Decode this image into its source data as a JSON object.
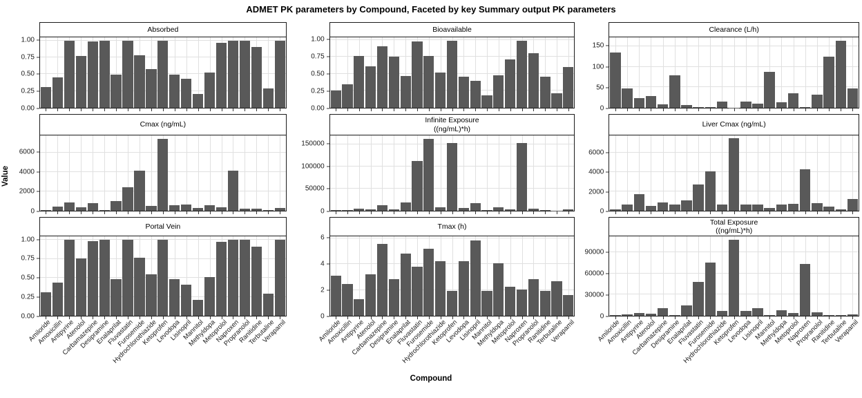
{
  "title": "ADMET PK parameters by Compound, Faceted by key Summary output PK parameters",
  "chart_data": {
    "type": "bar",
    "title": "ADMET PK parameters by Compound, Faceted by key Summary output PK parameters",
    "xlabel": "Compound",
    "ylabel": "Value",
    "legend": "none",
    "grid": "on",
    "bar_color": "#595959",
    "grid_color": "#e0e0e0",
    "border_color": "#1a1a1a",
    "categories": [
      "Amiloride",
      "Amoxicillin",
      "Antipyrine",
      "Atenolol",
      "Carbamazepine",
      "Desipramine",
      "Enalaprilat",
      "Fluvastatin",
      "Furosemide",
      "Hydrochlorothiazide",
      "Ketoprofen",
      "Levodopa",
      "Lisinopril",
      "Mannitol",
      "Methyldopa",
      "Metoprolol",
      "Naproxen",
      "Propranolol",
      "Ranitidine",
      "Terbutaline",
      "Verapamil"
    ],
    "facets": [
      {
        "title": [
          "Absorbed"
        ],
        "ylim": [
          0,
          1.05
        ],
        "yticks": [
          0,
          0.25,
          0.5,
          0.75,
          1.0
        ],
        "ytick_labels": [
          "0.00",
          "0.25",
          "0.50",
          "0.75",
          "1.00"
        ],
        "values": [
          0.31,
          0.45,
          1.0,
          0.77,
          0.99,
          1.0,
          0.49,
          1.0,
          0.78,
          0.58,
          1.0,
          0.49,
          0.43,
          0.21,
          0.53,
          0.97,
          1.0,
          1.0,
          0.91,
          0.29,
          1.0
        ]
      },
      {
        "title": [
          "Bioavailable"
        ],
        "ylim": [
          0,
          1.04
        ],
        "yticks": [
          0,
          0.25,
          0.5,
          0.75,
          1.0
        ],
        "ytick_labels": [
          "0.00",
          "0.25",
          "0.50",
          "0.75",
          "1.00"
        ],
        "values": [
          0.25,
          0.35,
          0.76,
          0.61,
          0.91,
          0.75,
          0.47,
          0.98,
          0.76,
          0.52,
          0.99,
          0.46,
          0.4,
          0.18,
          0.48,
          0.71,
          0.99,
          0.81,
          0.46,
          0.21,
          0.6
        ]
      },
      {
        "title": [
          "Clearance (L/h)"
        ],
        "ylim": [
          0,
          172
        ],
        "yticks": [
          0,
          50,
          100,
          150
        ],
        "ytick_labels": [
          "0",
          "50",
          "100",
          "150"
        ],
        "values": [
          135,
          47,
          24,
          28,
          8,
          80,
          6,
          1.5,
          1.5,
          16,
          0.5,
          16,
          10,
          87,
          14,
          35,
          1.5,
          32,
          125,
          164,
          47
        ]
      },
      {
        "title": [
          "Cmax (ng/mL)"
        ],
        "ylim": [
          0,
          7750
        ],
        "yticks": [
          0,
          2000,
          4000,
          6000
        ],
        "ytick_labels": [
          "0",
          "2000",
          "4000",
          "6000"
        ],
        "values": [
          80,
          450,
          850,
          380,
          780,
          50,
          1000,
          2450,
          4100,
          520,
          7400,
          600,
          650,
          300,
          580,
          380,
          4150,
          230,
          230,
          50,
          300
        ]
      },
      {
        "title": [
          "Infinite Exposure",
          "((ng/mL)*h)"
        ],
        "ylim": [
          0,
          170000
        ],
        "yticks": [
          0,
          50000,
          100000,
          150000
        ],
        "ytick_labels": [
          "0",
          "50000",
          "100000",
          "150000"
        ],
        "values": [
          1500,
          1200,
          5000,
          3500,
          13000,
          3500,
          19000,
          113000,
          162000,
          8000,
          153000,
          6500,
          17500,
          1200,
          8000,
          2500,
          153000,
          5000,
          2000,
          400,
          3000
        ]
      },
      {
        "title": [
          "Liver Cmax (ng/mL)"
        ],
        "ylim": [
          0,
          7800
        ],
        "yticks": [
          0,
          2000,
          4000,
          6000
        ],
        "ytick_labels": [
          "0",
          "2000",
          "4000",
          "6000"
        ],
        "values": [
          170,
          620,
          1750,
          530,
          880,
          680,
          1100,
          2700,
          4100,
          620,
          7500,
          620,
          680,
          320,
          680,
          750,
          4300,
          820,
          400,
          150,
          1250
        ]
      },
      {
        "title": [
          "Portal Vein"
        ],
        "ylim": [
          0,
          1.05
        ],
        "yticks": [
          0,
          0.25,
          0.5,
          0.75,
          1.0
        ],
        "ytick_labels": [
          "0.00",
          "0.25",
          "0.50",
          "0.75",
          "1.00"
        ],
        "values": [
          0.31,
          0.44,
          1.0,
          0.76,
          0.99,
          1.0,
          0.48,
          1.0,
          0.77,
          0.55,
          1.0,
          0.48,
          0.41,
          0.21,
          0.51,
          0.98,
          1.0,
          1.0,
          0.91,
          0.29,
          1.0
        ]
      },
      {
        "title": [
          "Tmax (h)"
        ],
        "ylim": [
          0,
          6.15
        ],
        "yticks": [
          0,
          2,
          4,
          6
        ],
        "ytick_labels": [
          "0",
          "2",
          "4",
          "6"
        ],
        "values": [
          3.1,
          2.45,
          1.3,
          3.2,
          5.55,
          2.85,
          4.8,
          3.8,
          5.2,
          4.25,
          1.9,
          4.2,
          5.85,
          1.95,
          4.05,
          2.25,
          2.05,
          2.85,
          1.95,
          2.65,
          1.6
        ]
      },
      {
        "title": [
          "Total Exposure",
          "((ng/mL)*h)"
        ],
        "ylim": [
          0,
          113000
        ],
        "yticks": [
          0,
          30000,
          60000,
          90000
        ],
        "ytick_labels": [
          "0",
          "30000",
          "60000",
          "90000"
        ],
        "values": [
          1200,
          2200,
          4000,
          3000,
          10500,
          800,
          14500,
          48000,
          76000,
          6500,
          108000,
          6500,
          10500,
          800,
          7500,
          3500,
          74000,
          4500,
          800,
          700,
          2200
        ]
      }
    ]
  }
}
